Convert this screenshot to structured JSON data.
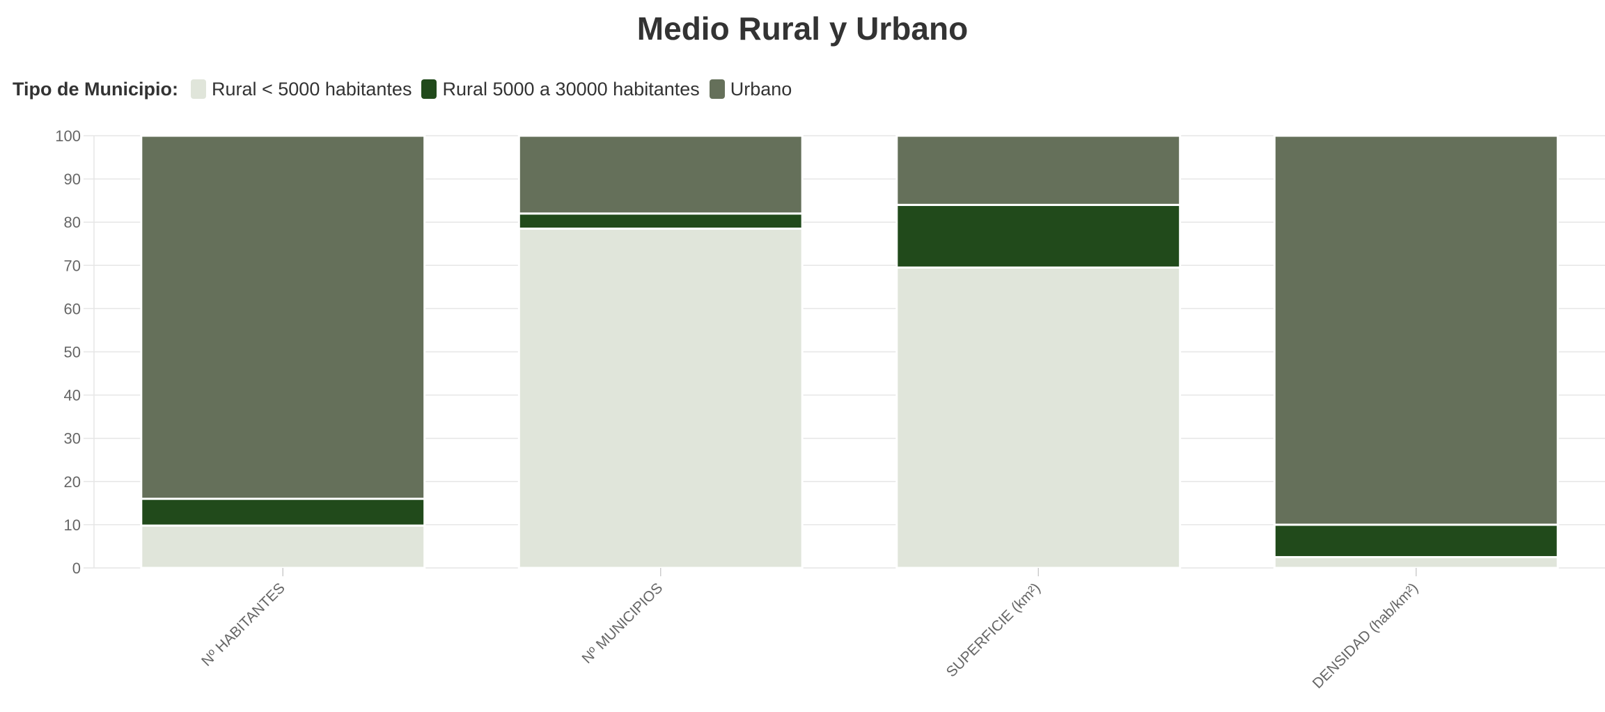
{
  "chart_data": {
    "type": "bar",
    "stacked": true,
    "title": "Medio Rural y Urbano",
    "legend": {
      "title": "Tipo de Municipio:",
      "placement": "top-left"
    },
    "categories": [
      "Nº HABITANTES",
      "Nº MUNICIPIOS",
      "SUPERFICIE (km²)",
      "DENSIDAD (hab/km²)"
    ],
    "series": [
      {
        "name": "Rural < 5000 habitantes",
        "color": "#e0e5da",
        "values": [
          9.8,
          78.5,
          69.5,
          2.5
        ]
      },
      {
        "name": "Rural 5000 a 30000 habitantes",
        "color": "#214a1b",
        "values": [
          6.2,
          3.5,
          14.5,
          7.5
        ]
      },
      {
        "name": "Urbano",
        "color": "#65705a",
        "values": [
          84.0,
          18.0,
          16.0,
          90.0
        ]
      }
    ],
    "y_ticks": [
      "0",
      "10",
      "20",
      "30",
      "40",
      "50",
      "60",
      "70",
      "80",
      "90",
      "100"
    ],
    "ylim": [
      0,
      100
    ],
    "xlabel": "",
    "ylabel": "",
    "grid": true
  }
}
